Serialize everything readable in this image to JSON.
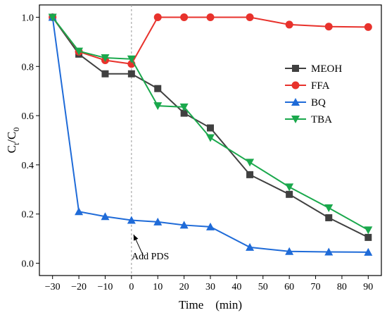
{
  "chart_data": {
    "type": "line",
    "title": "",
    "xlabel": "Time　(min)",
    "ylabel": "Ct/C0",
    "ylabel_parts": {
      "main": "C",
      "sub_t": "t",
      "slash": "/C",
      "sub_0": "0"
    },
    "xlim": [
      -35,
      95
    ],
    "ylim": [
      -0.05,
      1.05
    ],
    "xticks": [
      -30,
      -20,
      -10,
      0,
      10,
      20,
      30,
      40,
      50,
      60,
      70,
      80,
      90
    ],
    "xtick_labels": [
      "−30",
      "−20",
      "−10",
      "0",
      "10",
      "20",
      "30",
      "40",
      "50",
      "60",
      "70",
      "80",
      "90"
    ],
    "yticks": [
      0.0,
      0.2,
      0.4,
      0.6,
      0.8,
      1.0
    ],
    "ytick_labels": [
      "0.0",
      "0.2",
      "0.4",
      "0.6",
      "0.8",
      "1.0"
    ],
    "grid": false,
    "legend_position": "center-right",
    "series": [
      {
        "name": "MEOH",
        "color": "#404040",
        "marker": "square",
        "x": [
          -30,
          -20,
          -10,
          0,
          10,
          20,
          30,
          45,
          60,
          75,
          90
        ],
        "y": [
          1.0,
          0.85,
          0.77,
          0.77,
          0.71,
          0.61,
          0.55,
          0.36,
          0.28,
          0.185,
          0.105
        ]
      },
      {
        "name": "FFA",
        "color": "#e8322c",
        "marker": "circle",
        "x": [
          -30,
          -20,
          -10,
          0,
          10,
          20,
          30,
          45,
          60,
          75,
          90
        ],
        "y": [
          1.0,
          0.86,
          0.825,
          0.81,
          1.0,
          1.0,
          1.0,
          1.0,
          0.97,
          0.962,
          0.96
        ]
      },
      {
        "name": "BQ",
        "color": "#1f6bd8",
        "marker": "triangle-up",
        "x": [
          -30,
          -20,
          -10,
          0,
          10,
          20,
          30,
          45,
          60,
          75,
          90
        ],
        "y": [
          1.0,
          0.21,
          0.19,
          0.175,
          0.168,
          0.155,
          0.148,
          0.065,
          0.048,
          0.046,
          0.045
        ]
      },
      {
        "name": "TBA",
        "color": "#1aa84c",
        "marker": "triangle-down",
        "x": [
          -30,
          -20,
          -10,
          0,
          10,
          20,
          30,
          45,
          60,
          75,
          90
        ],
        "y": [
          1.0,
          0.862,
          0.835,
          0.83,
          0.64,
          0.635,
          0.51,
          0.41,
          0.31,
          0.225,
          0.135
        ]
      }
    ],
    "annotations": [
      {
        "text": "Add PDS",
        "arrow_from": [
          4.5,
          0.03
        ],
        "arrow_to": [
          0,
          0.125
        ]
      }
    ],
    "reference_lines": [
      {
        "orientation": "vertical",
        "x": 0,
        "style": "dashed",
        "color": "#999999"
      }
    ]
  }
}
